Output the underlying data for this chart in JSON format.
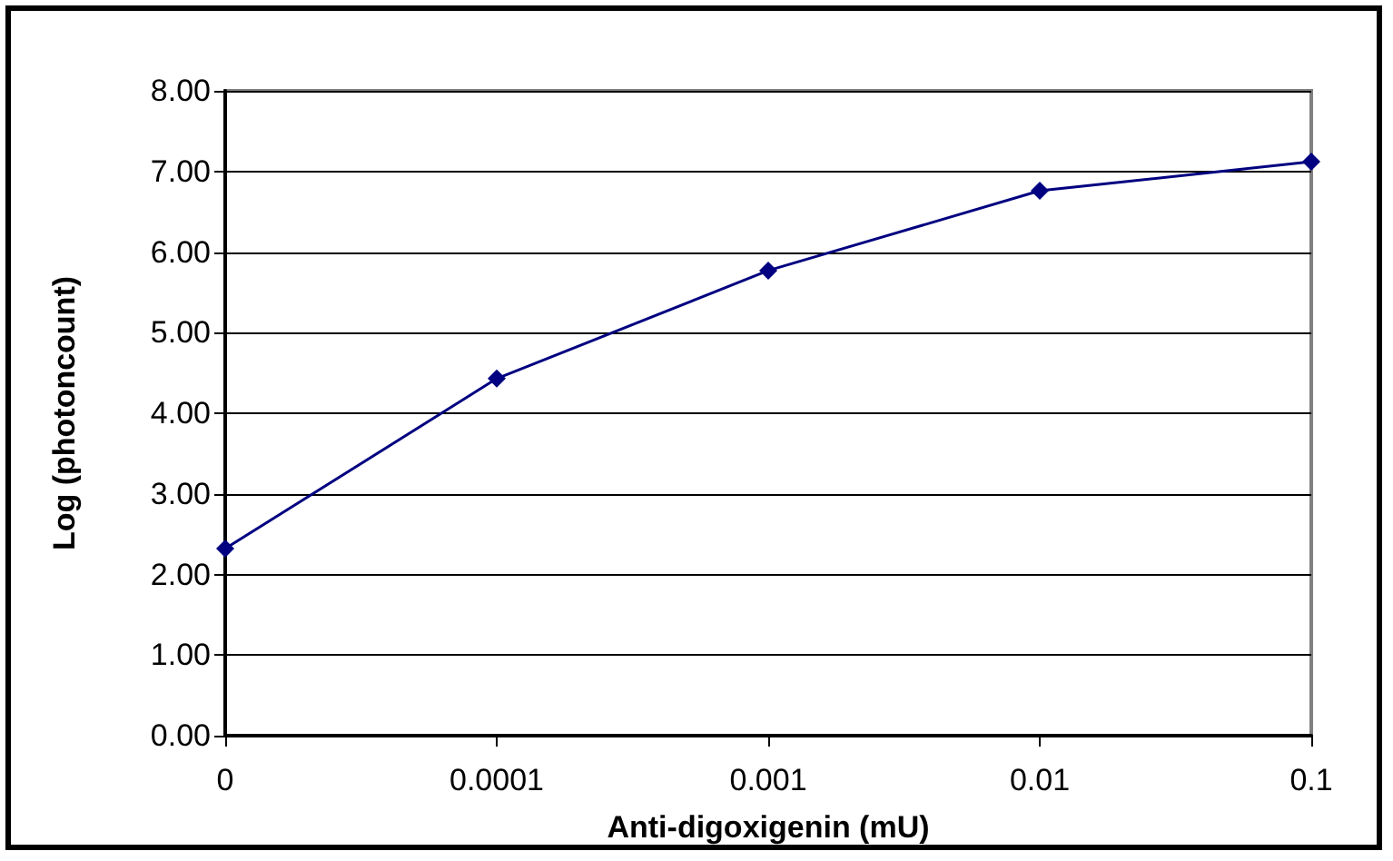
{
  "chart_data": {
    "type": "line",
    "xlabel": "Anti-digoxigenin (mU)",
    "ylabel": "Log (photoncount)",
    "categories": [
      "0",
      "0.0001",
      "0.001",
      "0.01",
      "0.1"
    ],
    "series": [
      {
        "color": "#000080",
        "values": [
          2.32,
          4.43,
          5.77,
          6.76,
          7.12
        ]
      }
    ],
    "ylim": [
      0,
      8
    ],
    "yticks": [
      {
        "value": 0,
        "label": "0.00"
      },
      {
        "value": 1,
        "label": "1.00"
      },
      {
        "value": 2,
        "label": "2.00"
      },
      {
        "value": 3,
        "label": "3.00"
      },
      {
        "value": 4,
        "label": "4.00"
      },
      {
        "value": 5,
        "label": "5.00"
      },
      {
        "value": 6,
        "label": "6.00"
      },
      {
        "value": 7,
        "label": "7.00"
      },
      {
        "value": 8,
        "label": "8.00"
      }
    ],
    "grid": "y",
    "marker": "diamond",
    "line_style": "solid"
  }
}
